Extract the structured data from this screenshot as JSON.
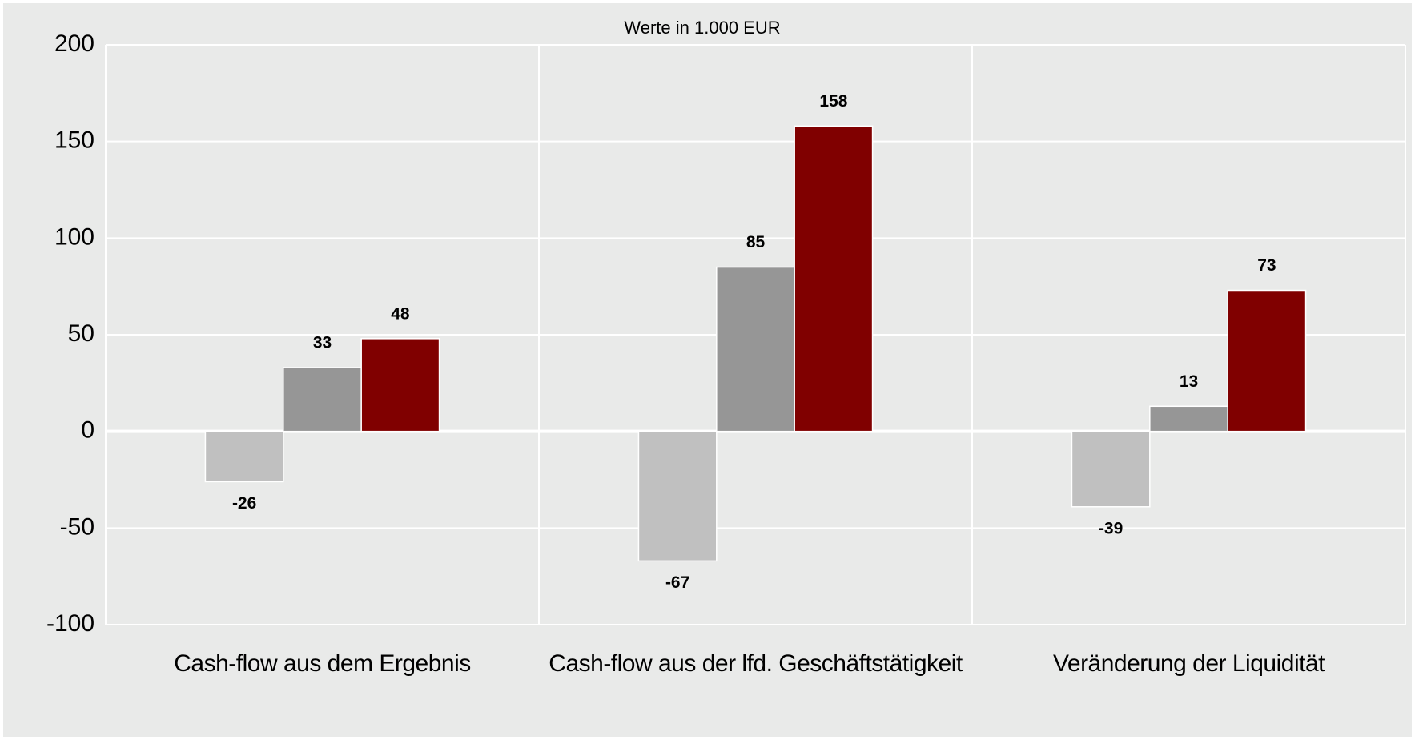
{
  "chart_data": {
    "type": "bar",
    "subtitle": "Werte in 1.000 EUR",
    "categories": [
      "Cash-flow aus dem Ergebnis",
      "Cash-flow aus der lfd. Geschäftstätigkeit",
      "Veränderung der Liquidität"
    ],
    "series": [
      {
        "color": "#c0c0c0",
        "values": [
          -26,
          -67,
          -39
        ]
      },
      {
        "color": "#969696",
        "values": [
          33,
          85,
          13
        ]
      },
      {
        "color": "#800000",
        "values": [
          48,
          158,
          73
        ]
      }
    ],
    "ylim": [
      -100,
      200
    ],
    "yticks": [
      -100,
      -50,
      0,
      50,
      100,
      150,
      200
    ],
    "grid": true
  }
}
